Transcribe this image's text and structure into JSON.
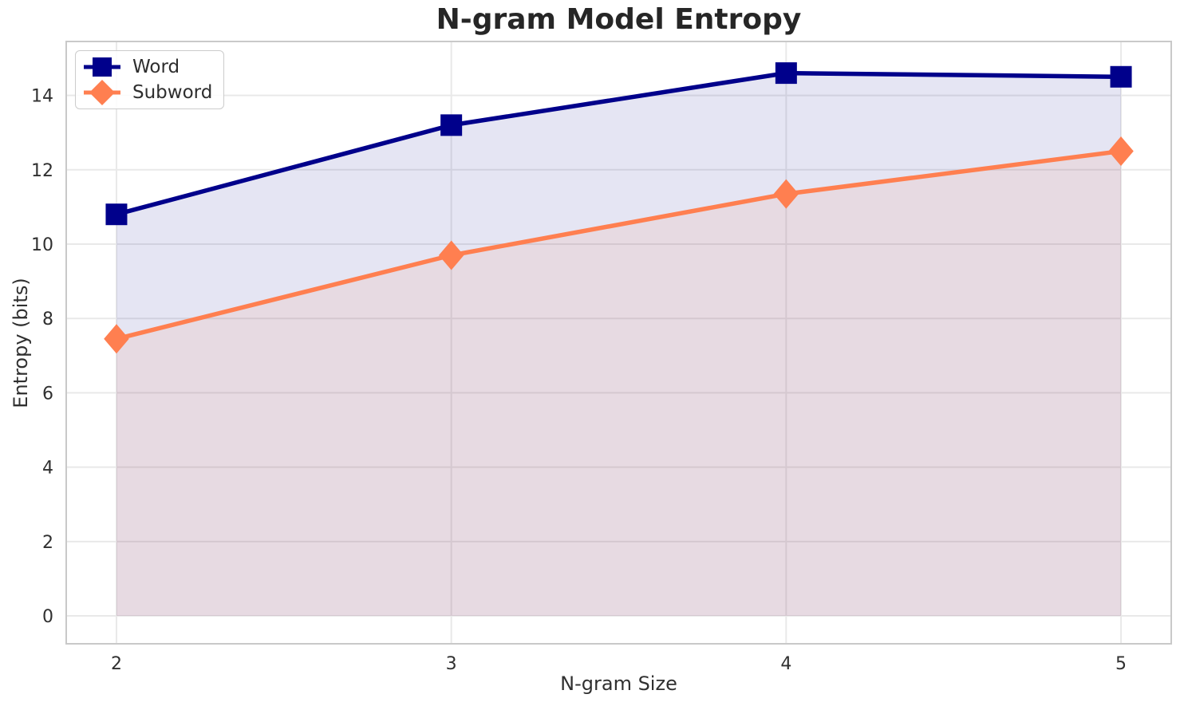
{
  "figure": {
    "title": "N-gram Model Entropy"
  },
  "chart_data": {
    "type": "line",
    "title": "N-gram Model Entropy",
    "xlabel": "N-gram Size",
    "ylabel": "Entropy (bits)",
    "x": [
      2,
      3,
      4,
      5
    ],
    "series": [
      {
        "name": "Word",
        "values": [
          10.8,
          13.2,
          14.6,
          14.5
        ],
        "color": "#00008B",
        "marker": "square",
        "area_fill": true
      },
      {
        "name": "Subword",
        "values": [
          7.45,
          9.7,
          11.35,
          12.5
        ],
        "color": "#FF7F50",
        "marker": "diamond",
        "area_fill": true
      }
    ],
    "fill_alpha": 0.1,
    "xticks": [
      2,
      3,
      4,
      5
    ],
    "yticks": [
      0,
      2,
      4,
      6,
      8,
      10,
      12,
      14
    ],
    "xlim": [
      1.85,
      5.15
    ],
    "ylim": [
      -0.75,
      15.45
    ],
    "grid": true,
    "legend_position": "upper left"
  },
  "palette": {
    "background": "#ffffff",
    "grid": "#e9e9e9",
    "spine": "#c9c9c9",
    "tick_text": "#303030",
    "title_text": "#262626",
    "legend_border": "#cccccc"
  }
}
